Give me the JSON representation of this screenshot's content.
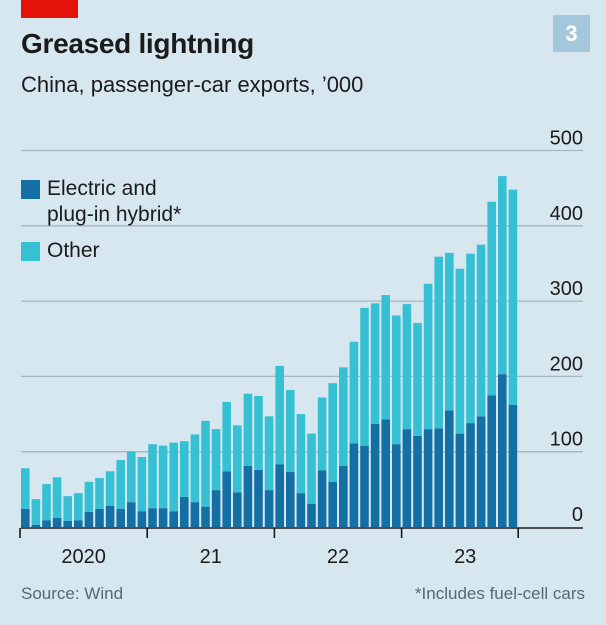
{
  "header": {
    "title": "Greased lightning",
    "subtitle": "China, passenger-car exports, ’000",
    "chart_number": "3"
  },
  "colors": {
    "brand_red": "#e3120b",
    "electric": "#1470a4",
    "other": "#36c0d3",
    "background": "#d7e7f0",
    "badge": "#a4c7dc"
  },
  "legend": [
    {
      "label_line1": "Electric and",
      "label_line2": "plug-in hybrid*",
      "color": "#1470a4"
    },
    {
      "label_line1": "Other",
      "label_line2": "",
      "color": "#36c0d3"
    }
  ],
  "footer": {
    "source": "Source: Wind",
    "note": "*Includes fuel-cell cars"
  },
  "chart_data": {
    "type": "bar",
    "stacked": true,
    "title": "Greased lightning",
    "subtitle": "China, passenger-car exports, ’000",
    "xlabel": "",
    "ylabel": "",
    "ylim": [
      0,
      500
    ],
    "yticks": [
      0,
      100,
      200,
      300,
      400,
      500
    ],
    "ytick_labels": [
      "0",
      "100",
      "200",
      "300",
      "400",
      "500"
    ],
    "y_axis_side": "right",
    "grid": true,
    "legend_position": "top-left",
    "x_tick_labels": [
      "2020",
      "21",
      "22",
      "23"
    ],
    "categories": [
      "2020-01",
      "2020-02",
      "2020-03",
      "2020-04",
      "2020-05",
      "2020-06",
      "2020-07",
      "2020-08",
      "2020-09",
      "2020-10",
      "2020-11",
      "2020-12",
      "2021-01",
      "2021-02",
      "2021-03",
      "2021-04",
      "2021-05",
      "2021-06",
      "2021-07",
      "2021-08",
      "2021-09",
      "2021-10",
      "2021-11",
      "2021-12",
      "2022-01",
      "2022-02",
      "2022-03",
      "2022-04",
      "2022-05",
      "2022-06",
      "2022-07",
      "2022-08",
      "2022-09",
      "2022-10",
      "2022-11",
      "2022-12",
      "2023-01",
      "2023-02",
      "2023-03",
      "2023-04",
      "2023-05",
      "2023-06",
      "2023-07",
      "2023-08",
      "2023-09",
      "2023-10",
      "2023-11"
    ],
    "series": [
      {
        "name": "Electric and plug-in hybrid*",
        "color": "#1470a4",
        "values": [
          24,
          3,
          9,
          12,
          8,
          9,
          20,
          24,
          28,
          24,
          33,
          21,
          25,
          25,
          21,
          40,
          33,
          27,
          49,
          74,
          46,
          81,
          76,
          49,
          83,
          73,
          45,
          31,
          75,
          60,
          81,
          111,
          108,
          137,
          143,
          110,
          130,
          121,
          130,
          131,
          155,
          124,
          138,
          147,
          175,
          203,
          162
        ]
      },
      {
        "name": "Other",
        "color": "#36c0d3",
        "values": [
          54,
          34,
          48,
          54,
          33,
          36,
          40,
          41,
          46,
          65,
          67,
          72,
          85,
          83,
          91,
          74,
          90,
          114,
          81,
          92,
          89,
          96,
          98,
          98,
          131,
          109,
          105,
          93,
          97,
          131,
          131,
          135,
          183,
          160,
          165,
          171,
          166,
          150,
          193,
          228,
          209,
          219,
          225,
          228,
          257,
          263,
          286
        ]
      }
    ]
  }
}
